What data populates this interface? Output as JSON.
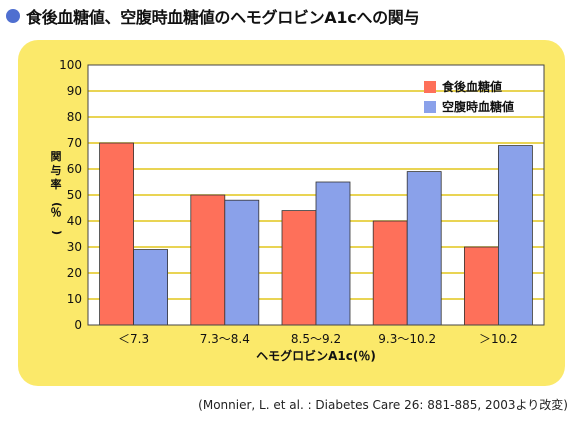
{
  "heading": "食後血糖値、空腹時血糖値のヘモグロビンA1cへの関与",
  "colors": {
    "panel": "#fbe96a",
    "plot_bg": "#ffffff",
    "grid": "#e2c51c",
    "series": [
      "#fe705a",
      "#8aa1ea"
    ],
    "heading_dot": "#4f6fd0"
  },
  "chart_data": {
    "type": "bar",
    "categories": [
      "＜7.3",
      "7.3～8.4",
      "8.5～9.2",
      "9.3～10.2",
      "＞10.2"
    ],
    "series": [
      {
        "name": "食後血糖値",
        "values": [
          70,
          50,
          44,
          40,
          30
        ]
      },
      {
        "name": "空腹時血糖値",
        "values": [
          29,
          48,
          55,
          59,
          69
        ]
      }
    ],
    "xlabel": "ヘモグロビンA1c(％)",
    "ylabel": "関与率(％)",
    "ylim": [
      0,
      100
    ],
    "yticks": [
      0,
      10,
      20,
      30,
      40,
      50,
      60,
      70,
      80,
      90,
      100
    ],
    "grid": true,
    "legend": "top-right"
  },
  "source": "(Monnier, L. et al. : Diabetes Care 26: 881-885, 2003より改変)"
}
